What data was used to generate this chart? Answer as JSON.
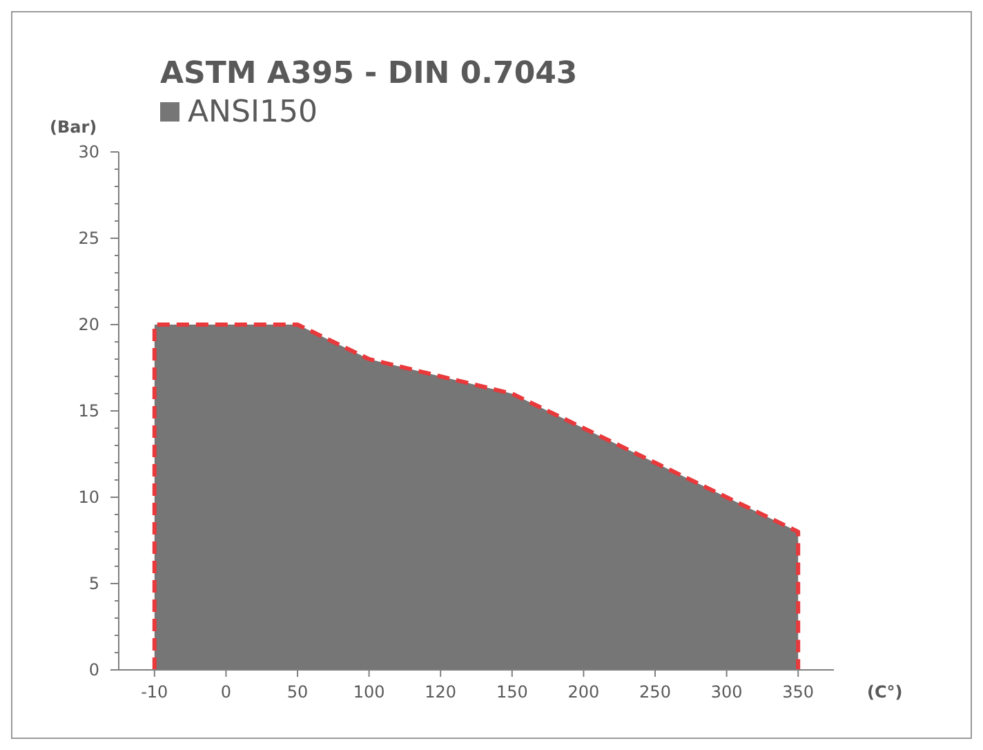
{
  "chart_data": {
    "type": "area",
    "title": "ASTM A395 - DIN 0.7043",
    "xlabel": "(C°)",
    "ylabel": "(Bar)",
    "categories": [
      "-10",
      "0",
      "50",
      "100",
      "120",
      "150",
      "200",
      "250",
      "300",
      "350"
    ],
    "series": [
      {
        "name": "ANSI150",
        "color": "#767676",
        "values": [
          20,
          20,
          20,
          18,
          17,
          16,
          14,
          12,
          10,
          8
        ]
      }
    ],
    "ylim": [
      0,
      30
    ],
    "yticks": [
      0,
      5,
      10,
      15,
      20,
      25,
      30
    ],
    "grid": false,
    "legend": "top left",
    "line_style": "dashed"
  }
}
